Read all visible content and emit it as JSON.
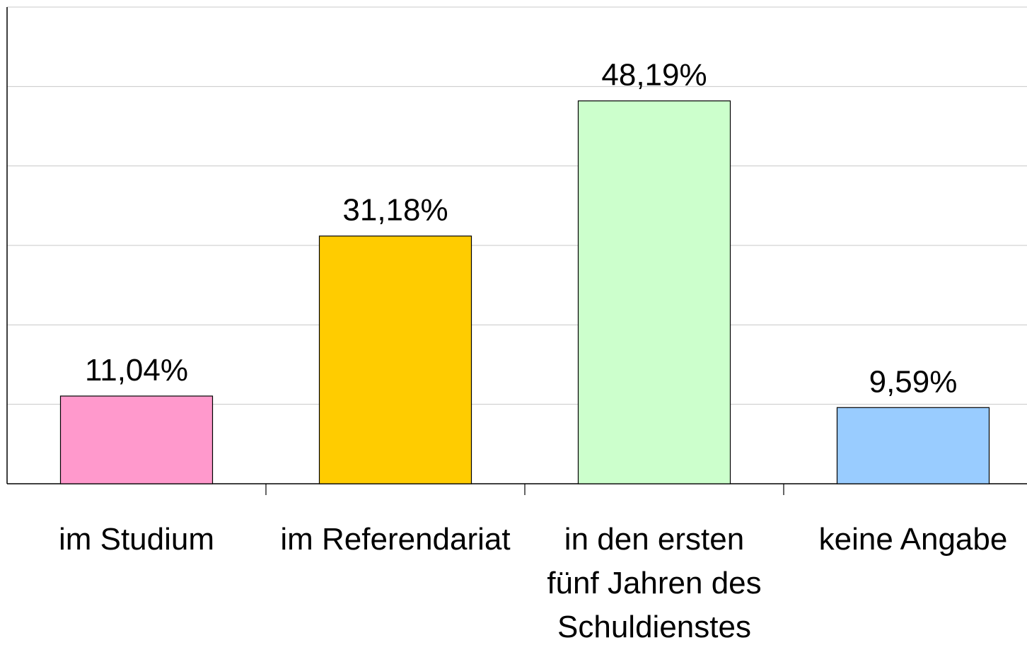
{
  "chart_data": {
    "type": "bar",
    "categories": [
      "im Studium",
      "im Referendariat",
      "in den ersten fünf Jahren des Schuldienstes",
      "keine Angabe"
    ],
    "values": [
      11.04,
      31.18,
      48.19,
      9.59
    ],
    "value_labels": [
      "11,04%",
      "31,18%",
      "48,19%",
      "9,59%"
    ],
    "colors": [
      "#ff99cc",
      "#ffcc00",
      "#ccffcc",
      "#99ccff"
    ],
    "ylim": [
      0,
      60
    ],
    "yticks": [
      0,
      10,
      20,
      30,
      40,
      50,
      60
    ],
    "grid": true
  }
}
